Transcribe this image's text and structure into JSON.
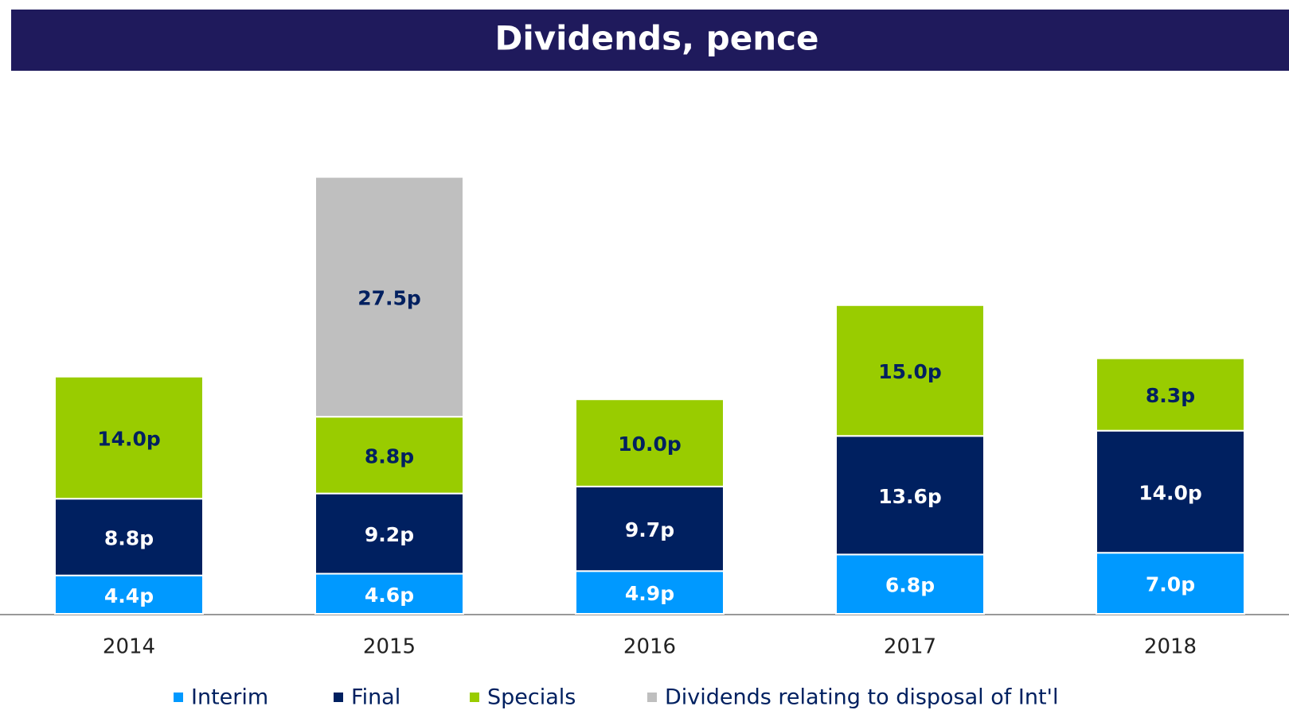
{
  "chart_data": {
    "type": "bar",
    "stacked": true,
    "title": "Dividends, pence",
    "categories": [
      "2014",
      "2015",
      "2016",
      "2017",
      "2018"
    ],
    "ylim": [
      0,
      60
    ],
    "series": [
      {
        "name": "Interim",
        "color": "#0099ff",
        "values": [
          4.4,
          4.6,
          4.9,
          6.8,
          7.0
        ],
        "value_labels": [
          "4.4p",
          "4.6p",
          "4.9p",
          "6.8p",
          "7.0p"
        ]
      },
      {
        "name": "Final",
        "color": "#002060",
        "values": [
          8.8,
          9.2,
          9.7,
          13.6,
          14.0
        ],
        "value_labels": [
          "8.8p",
          "9.2p",
          "9.7p",
          "13.6p",
          "14.0p"
        ]
      },
      {
        "name": "Specials",
        "color": "#99cc00",
        "values": [
          14.0,
          8.8,
          10.0,
          15.0,
          8.3
        ],
        "value_labels": [
          "14.0p",
          "8.8p",
          "10.0p",
          "15.0p",
          "8.3p"
        ]
      },
      {
        "name": "Dividends relating to disposal of Int'l",
        "color": "#bfbfbf",
        "values": [
          null,
          27.5,
          null,
          null,
          null
        ],
        "value_labels": [
          null,
          "27.5p",
          null,
          null,
          null
        ]
      }
    ]
  }
}
